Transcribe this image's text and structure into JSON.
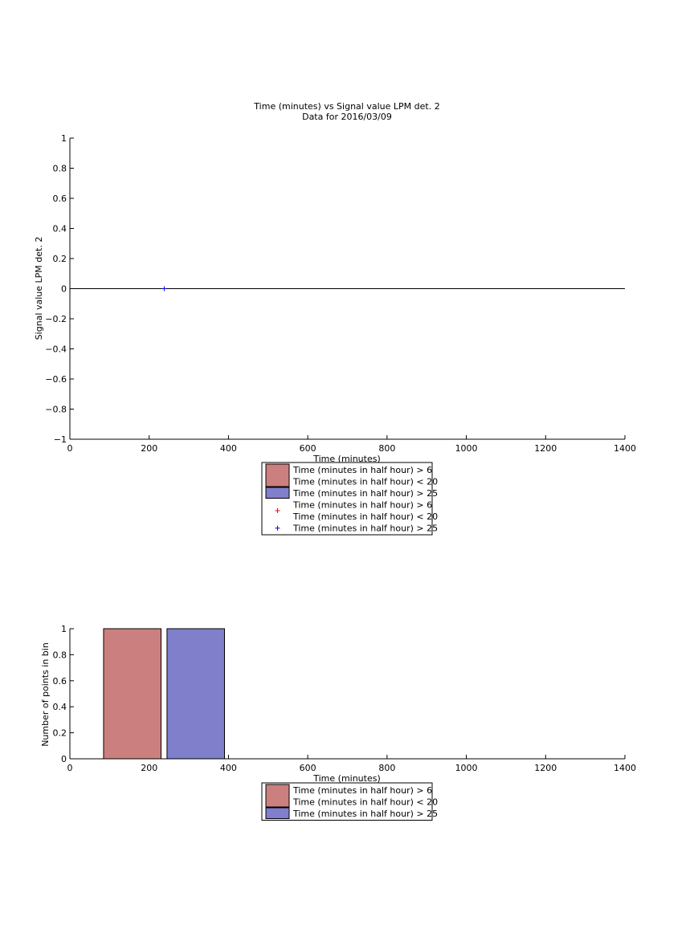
{
  "chart_data": [
    {
      "type": "scatter",
      "title": "Time (minutes) vs Signal value LPM det. 2",
      "subtitle": "Data for 2016/03/09",
      "xlabel": "Time (minutes)",
      "ylabel": "Signal value LPM det. 2",
      "xlim": [
        0,
        1400
      ],
      "ylim": [
        -1,
        1
      ],
      "xticks": [
        0,
        200,
        400,
        600,
        800,
        1000,
        1200,
        1400
      ],
      "yticks": [
        1,
        0.8,
        0.6,
        0.4,
        0.2,
        0,
        -0.2,
        -0.4,
        -0.6,
        -0.8,
        -1
      ],
      "ytick_labels": [
        "1",
        "0.8",
        "0.6",
        "0.4",
        "0.2",
        "0",
        "−0.2",
        "−0.4",
        "−0.6",
        "−0.8",
        "−1"
      ],
      "reference_line_y": 0,
      "series": [
        {
          "name": "Time (minutes in half hour) > 6 Time (minutes in half hour) < 20",
          "marker": "+",
          "color": "#ff0000",
          "points": []
        },
        {
          "name": "Time (minutes in half hour) > 25",
          "marker": "+",
          "color": "#0000ff",
          "points": [
            [
              238,
              0
            ]
          ]
        }
      ],
      "legend": {
        "placement": "below",
        "entries": [
          {
            "kind": "patch",
            "color": "#cc7f7f",
            "lines": [
              "Time (minutes in half hour) > 6",
              "Time (minutes in half hour) < 20"
            ]
          },
          {
            "kind": "patch",
            "color": "#7f7fcc",
            "lines": [
              "Time (minutes in half hour) > 25"
            ]
          },
          {
            "kind": "marker",
            "color": "#ff0000",
            "marker": "+",
            "lines": [
              "Time (minutes in half hour) > 6",
              "Time (minutes in half hour) < 20"
            ]
          },
          {
            "kind": "marker",
            "color": "#0000ff",
            "marker": "+",
            "lines": [
              "Time (minutes in half hour) > 25"
            ]
          }
        ]
      }
    },
    {
      "type": "bar",
      "xlabel": "Time (minutes)",
      "ylabel": "Number of points in bin",
      "xlim": [
        0,
        1400
      ],
      "ylim": [
        0,
        1
      ],
      "xticks": [
        0,
        200,
        400,
        600,
        800,
        1000,
        1200,
        1400
      ],
      "yticks": [
        1,
        0.8,
        0.6,
        0.4,
        0.2,
        0
      ],
      "ytick_labels": [
        "1",
        "0.8",
        "0.6",
        "0.4",
        "0.2",
        "0"
      ],
      "bars": [
        {
          "x_start": 85,
          "x_end": 230,
          "value": 1,
          "color": "#cc7f7f"
        },
        {
          "x_start": 245,
          "x_end": 390,
          "value": 1,
          "color": "#7f7fcc"
        }
      ],
      "legend": {
        "placement": "below",
        "entries": [
          {
            "kind": "patch",
            "color": "#cc7f7f",
            "lines": [
              "Time (minutes in half hour) > 6",
              "Time (minutes in half hour) < 20"
            ]
          },
          {
            "kind": "patch",
            "color": "#7f7fcc",
            "lines": [
              "Time (minutes in half hour) > 25"
            ]
          }
        ]
      }
    }
  ]
}
